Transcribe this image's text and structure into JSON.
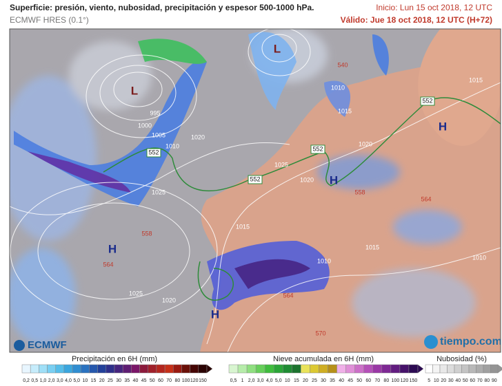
{
  "header": {
    "title": "Superficie: presión, viento, nubosidad, precipitación y espesor 500-1000 hPa.",
    "model": "ECMWF HRES (0.1°)",
    "init": "Inicio: Lun 15 oct 2018, 12 UTC",
    "valid": "Válido: Jue 18 oct 2018, 12 UTC (H+72)"
  },
  "map": {
    "lows": [
      "L",
      "L"
    ],
    "highs": [
      "H",
      "H",
      "H",
      "H"
    ],
    "isobars": [
      995,
      1000,
      1005,
      1010,
      1020,
      1025,
      1025,
      1020,
      1015,
      1015,
      1010,
      1015,
      1020,
      1025,
      1020,
      1015,
      1010,
      1010
    ],
    "thickness": [
      552,
      552,
      552,
      552,
      558,
      564,
      564,
      570,
      540,
      558,
      564
    ],
    "logos": {
      "left": "ECMWF",
      "right": "tiempo.com"
    }
  },
  "legend": {
    "precipitation": {
      "title": "Precipitación en 6H (mm)",
      "ticks": [
        "0,2",
        "0,5",
        "1,0",
        "2,0",
        "3,0",
        "4,0",
        "5,0",
        "10",
        "15",
        "20",
        "25",
        "30",
        "35",
        "40",
        "45",
        "50",
        "60",
        "70",
        "80",
        "100",
        "120",
        "150"
      ]
    },
    "snow": {
      "title": "Nieve acumulada en 6H (mm)",
      "ticks": [
        "0,5",
        "1",
        "2,0",
        "3,0",
        "4,0",
        "5,0",
        "10",
        "15",
        "20",
        "25",
        "30",
        "35",
        "40",
        "45",
        "50",
        "60",
        "70",
        "80",
        "100",
        "120",
        "150"
      ]
    },
    "clouds": {
      "title": "Nubosidad (%)",
      "ticks": [
        "5",
        "10",
        "20",
        "30",
        "40",
        "50",
        "60",
        "70",
        "80",
        "90"
      ]
    }
  }
}
